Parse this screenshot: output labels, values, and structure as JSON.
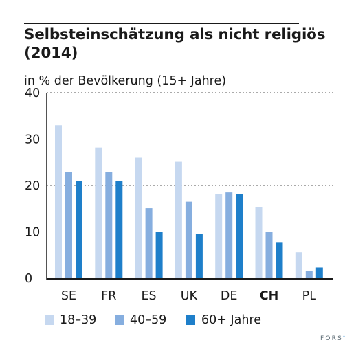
{
  "header": {
    "title": "Selbsteinschätzung als nicht religiös (2014)",
    "subtitle": "in % der Bevölkerung (15+ Jahre)"
  },
  "chart_data": {
    "type": "bar",
    "title": "Selbsteinschätzung als nicht religiös (2014)",
    "subtitle": "in % der Bevölkerung (15+ Jahre)",
    "xlabel": "",
    "ylabel": "",
    "ylim": [
      0,
      40
    ],
    "yticks": [
      "0",
      "10",
      "20",
      "30",
      "40"
    ],
    "grid": "horizontal-dotted",
    "legend_position": "bottom",
    "categories": [
      "SE",
      "FR",
      "ES",
      "UK",
      "DE",
      "CH",
      "PL"
    ],
    "highlight_category": "CH",
    "series": [
      {
        "name": "18–39",
        "color": "#c6d8f0",
        "values": [
          33,
          28.2,
          26,
          25.1,
          18.2,
          15.4,
          5.6
        ]
      },
      {
        "name": "40–59",
        "color": "#86aedf",
        "values": [
          22.9,
          22.9,
          15.1,
          16.5,
          18.5,
          10,
          1.5
        ]
      },
      {
        "name": "60+ Jahre",
        "color": "#1e7fca",
        "values": [
          20.9,
          20.9,
          10,
          9.5,
          18.2,
          7.8,
          2.3
        ]
      }
    ]
  },
  "logo": {
    "text": "FORS",
    "mark": "°"
  }
}
